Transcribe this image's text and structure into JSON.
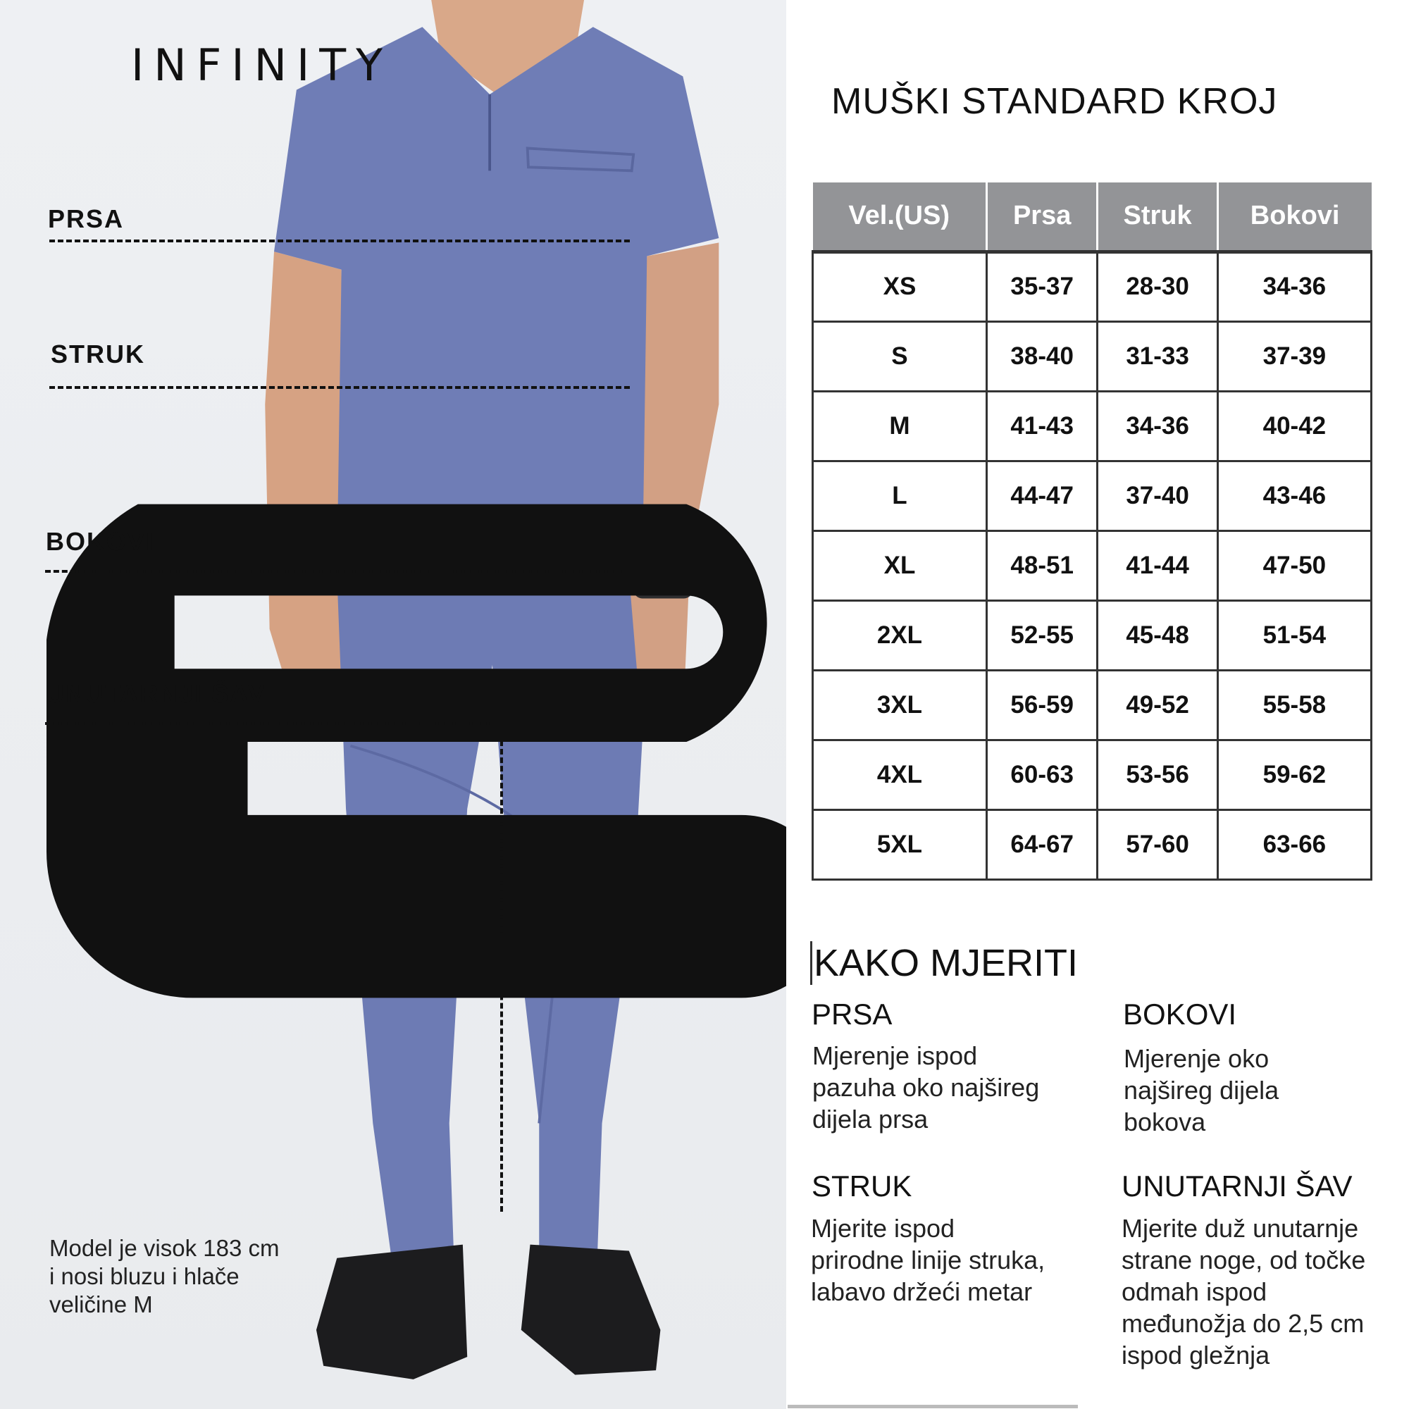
{
  "brand": {
    "name": "INFINITY"
  },
  "measure_labels": {
    "prsa": "PRSA",
    "struk": "STRUK",
    "bokovi": "BOKOVI",
    "inseam": "UNUTARNJI ŠAV"
  },
  "model_note": [
    "Model je visok 183 cm",
    "i nosi bluzu i hlače",
    "veličine M"
  ],
  "title": "MUŠKI STANDARD KROJ",
  "table": {
    "headers": [
      "Vel.(US)",
      "Prsa",
      "Struk",
      "Bokovi"
    ],
    "rows": [
      [
        "XS",
        "35-37",
        "28-30",
        "34-36"
      ],
      [
        "S",
        "38-40",
        "31-33",
        "37-39"
      ],
      [
        "M",
        "41-43",
        "34-36",
        "40-42"
      ],
      [
        "L",
        "44-47",
        "37-40",
        "43-46"
      ],
      [
        "XL",
        "48-51",
        "41-44",
        "47-50"
      ],
      [
        "2XL",
        "52-55",
        "45-48",
        "51-54"
      ],
      [
        "3XL",
        "56-59",
        "49-52",
        "55-58"
      ],
      [
        "4XL",
        "60-63",
        "53-56",
        "59-62"
      ],
      [
        "5XL",
        "64-67",
        "57-60",
        "63-66"
      ]
    ]
  },
  "how_to": {
    "title": "KAKO MJERITI",
    "prsa": {
      "heading": "PRSA",
      "lines": [
        "Mjerenje ispod",
        "pazuha oko najšireg",
        "dijela prsa"
      ]
    },
    "bokovi": {
      "heading": "BOKOVI",
      "lines": [
        "Mjerenje oko",
        "najšireg dijela",
        "bokova"
      ]
    },
    "struk": {
      "heading": "STRUK",
      "lines": [
        "Mjerite ispod",
        "prirodne linije struka,",
        "labavo držeći metar"
      ]
    },
    "inseam": {
      "heading": "UNUTARNJI ŠAV",
      "lines": [
        "Mjerite duž unutarnje",
        "strane noge, od točke",
        "odmah ispod",
        "međunožja do 2,5 cm",
        "ispod gležnja"
      ]
    }
  },
  "colors": {
    "header_bg": "#939497",
    "garment": "#6f7db6",
    "background": "#eef0f3"
  }
}
